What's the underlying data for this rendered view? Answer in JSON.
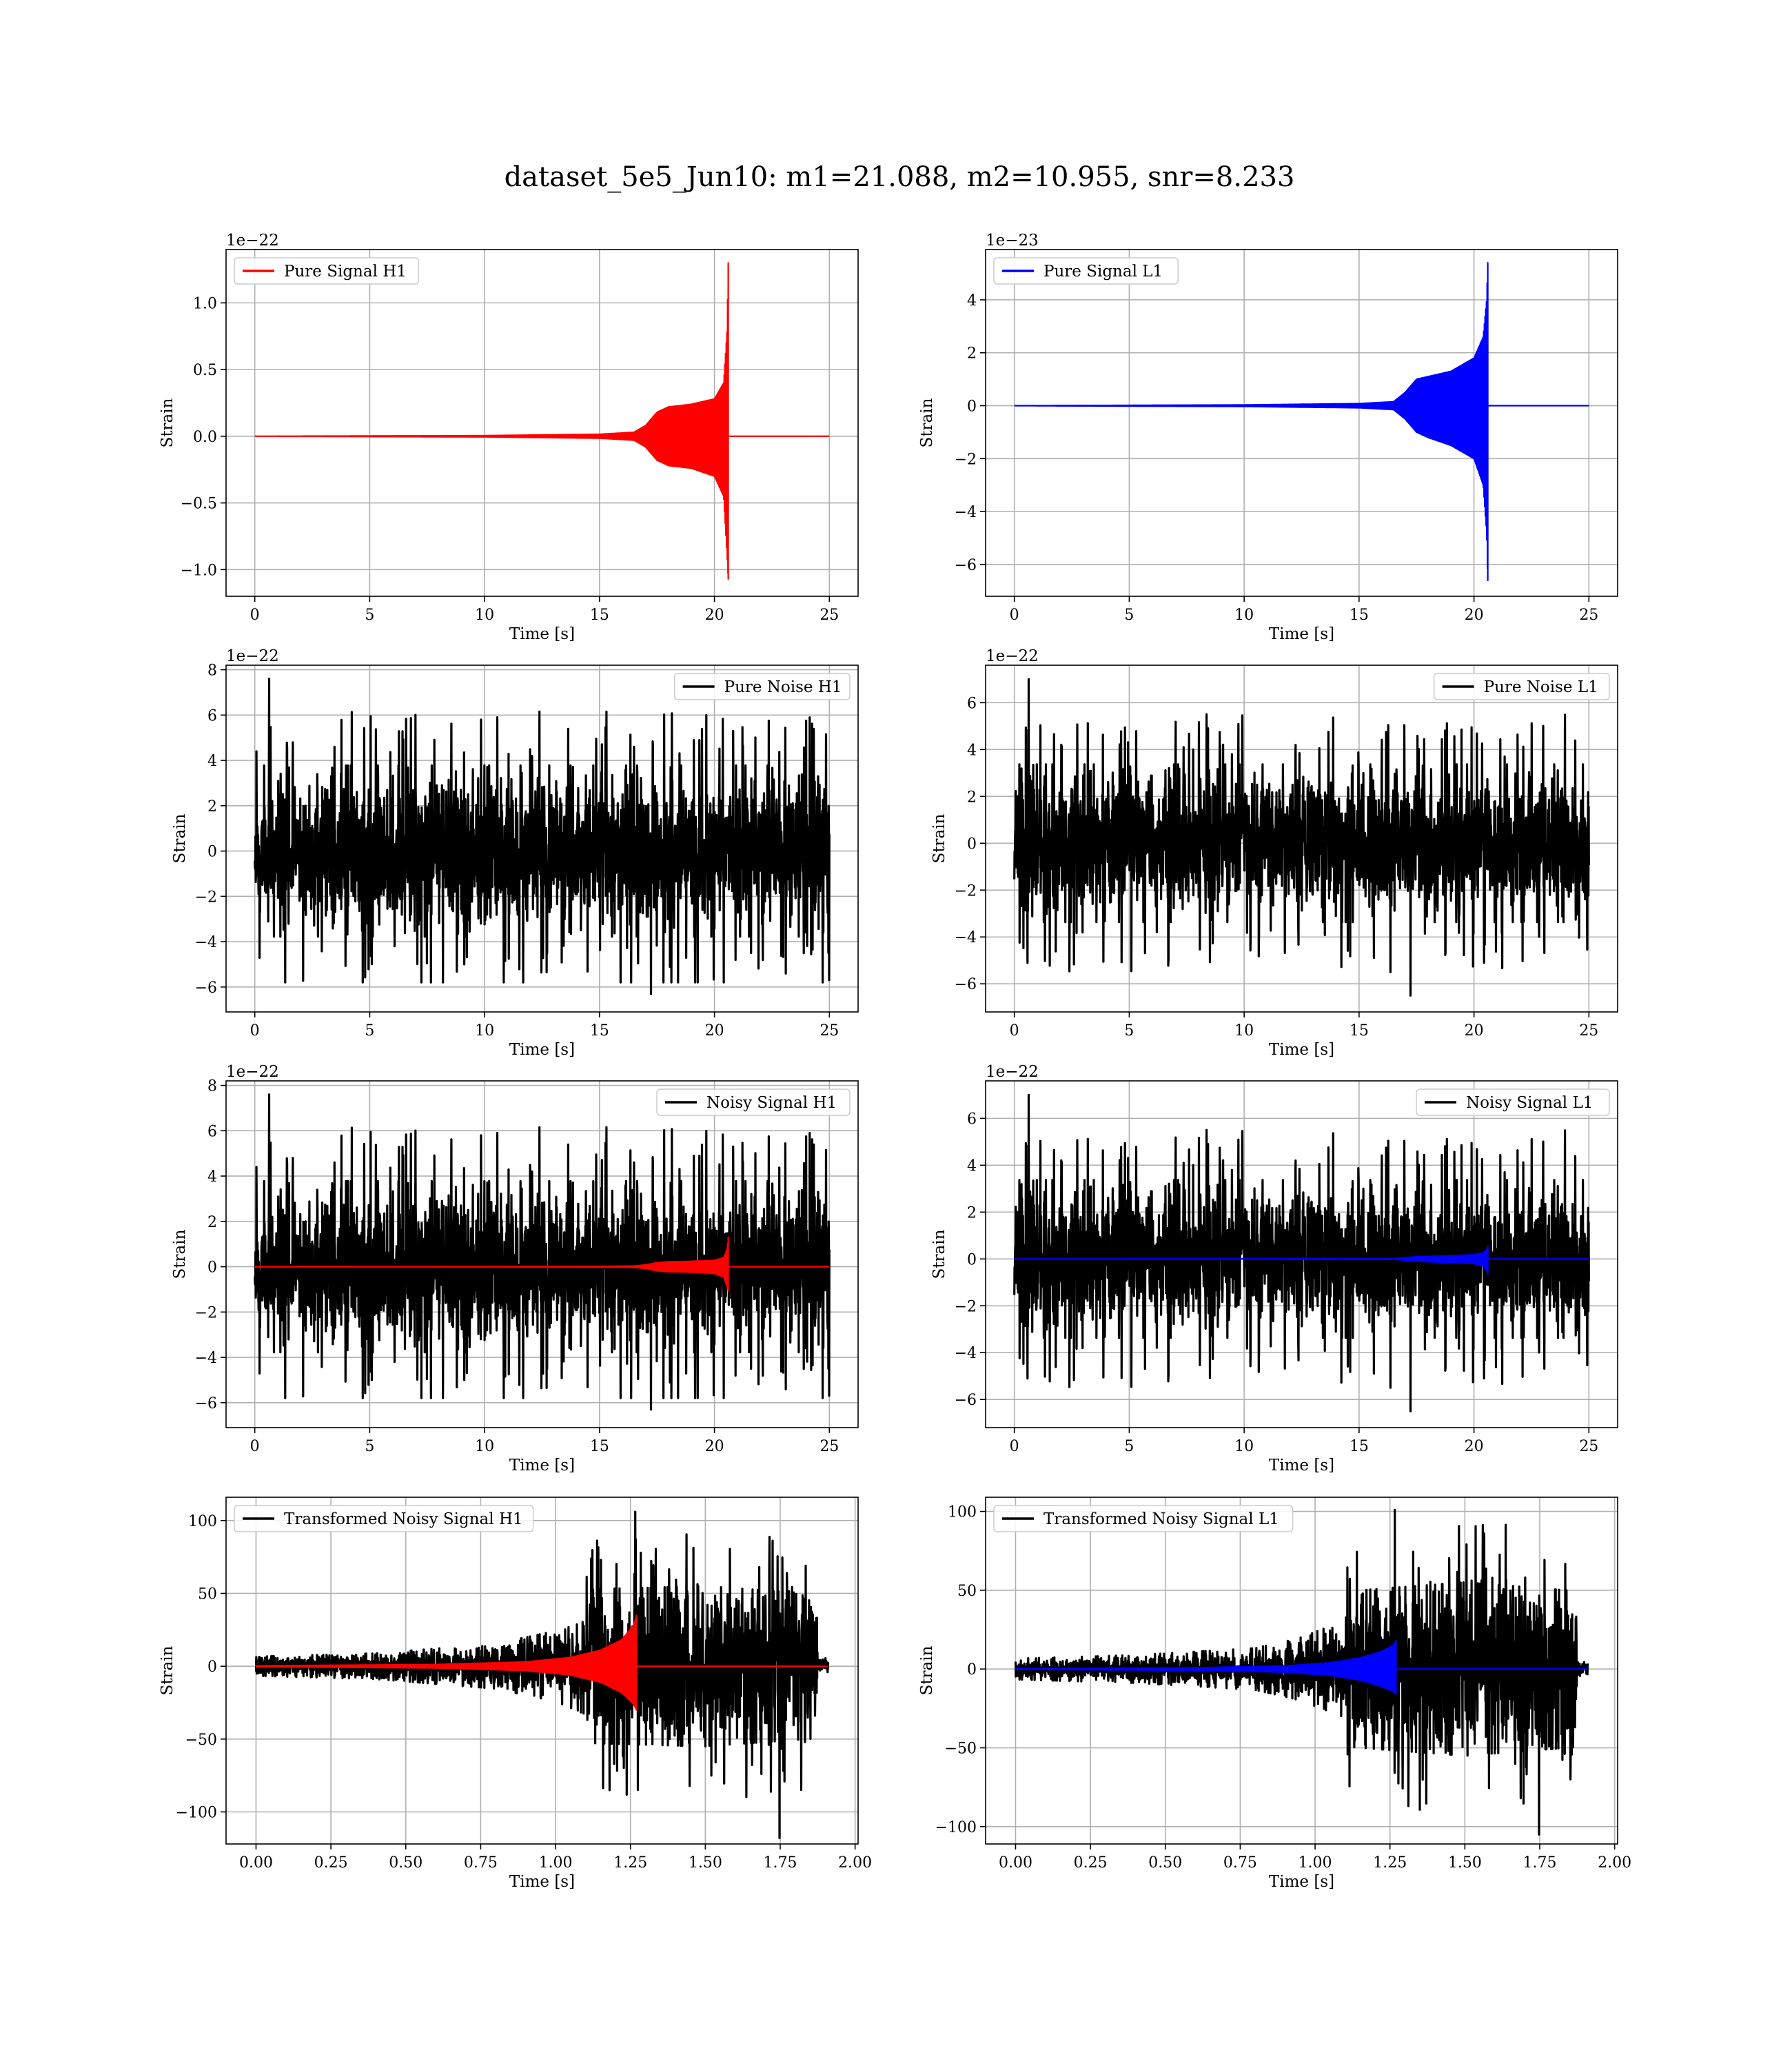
{
  "figure": {
    "title": "dataset_5e5_Jun10: m1=21.088, m2=10.955, snr=8.233"
  },
  "colors": {
    "h1_signal": "#ff0000",
    "l1_signal": "#0000ff",
    "noise": "#000000"
  },
  "chart_data": [
    {
      "type": "line",
      "id": "pure-signal-h1",
      "row": 0,
      "col": 0,
      "title": "",
      "xlabel": "Time [s]",
      "ylabel": "Strain",
      "offset_text": "1e−22",
      "xlim": [
        -1.25,
        26.25
      ],
      "ylim": [
        -1.2,
        1.4
      ],
      "xticks": [
        0,
        5,
        10,
        15,
        20,
        25
      ],
      "xtick_labels": [
        "0",
        "5",
        "10",
        "15",
        "20",
        "25"
      ],
      "yticks": [
        -1.0,
        -0.5,
        0.0,
        0.5,
        1.0
      ],
      "ytick_labels": [
        "−1.0",
        "−0.5",
        "0.0",
        "0.5",
        "1.0"
      ],
      "grid": true,
      "legend_position": "top-left",
      "series": [
        {
          "name": "Pure Signal H1",
          "color": "#ff0000",
          "kind": "chirp",
          "x_start": 0,
          "x_end": 25,
          "merger_time": 20.6,
          "envelope_x": [
            0,
            10,
            15,
            16.5,
            17.0,
            17.5,
            18.0,
            19.0,
            20.0,
            20.4,
            20.55,
            20.6
          ],
          "envelope_upper": [
            0.0,
            0.005,
            0.015,
            0.03,
            0.08,
            0.18,
            0.22,
            0.24,
            0.28,
            0.4,
            0.8,
            1.3
          ],
          "envelope_lower": [
            0.0,
            -0.005,
            -0.015,
            -0.03,
            -0.08,
            -0.18,
            -0.22,
            -0.24,
            -0.3,
            -0.45,
            -0.9,
            -1.07
          ]
        }
      ]
    },
    {
      "type": "line",
      "id": "pure-signal-l1",
      "row": 0,
      "col": 1,
      "title": "",
      "xlabel": "Time [s]",
      "ylabel": "Strain",
      "offset_text": "1e−23",
      "xlim": [
        -1.25,
        26.25
      ],
      "ylim": [
        -7.2,
        5.9
      ],
      "xticks": [
        0,
        5,
        10,
        15,
        20,
        25
      ],
      "xtick_labels": [
        "0",
        "5",
        "10",
        "15",
        "20",
        "25"
      ],
      "yticks": [
        -6,
        -4,
        -2,
        0,
        2,
        4
      ],
      "ytick_labels": [
        "−6",
        "−4",
        "−2",
        "0",
        "2",
        "4"
      ],
      "grid": true,
      "legend_position": "top-left",
      "series": [
        {
          "name": "Pure Signal L1",
          "color": "#0000ff",
          "kind": "chirp",
          "x_start": 0,
          "x_end": 25,
          "merger_time": 20.6,
          "envelope_x": [
            0,
            10,
            15,
            16.5,
            17.0,
            17.5,
            18.0,
            19.0,
            20.0,
            20.4,
            20.55,
            20.6
          ],
          "envelope_upper": [
            0.0,
            0.03,
            0.08,
            0.15,
            0.5,
            1.0,
            1.1,
            1.3,
            1.8,
            2.6,
            4.0,
            5.4
          ],
          "envelope_lower": [
            0.0,
            -0.03,
            -0.08,
            -0.15,
            -0.5,
            -1.0,
            -1.2,
            -1.5,
            -2.0,
            -3.0,
            -4.8,
            -6.6
          ]
        }
      ]
    },
    {
      "type": "line",
      "id": "pure-noise-h1",
      "row": 1,
      "col": 0,
      "title": "",
      "xlabel": "Time [s]",
      "ylabel": "Strain",
      "offset_text": "1e−22",
      "xlim": [
        -1.25,
        26.25
      ],
      "ylim": [
        -7.1,
        8.2
      ],
      "xticks": [
        0,
        5,
        10,
        15,
        20,
        25
      ],
      "xtick_labels": [
        "0",
        "5",
        "10",
        "15",
        "20",
        "25"
      ],
      "yticks": [
        -6,
        -4,
        -2,
        0,
        2,
        4,
        6,
        8
      ],
      "ytick_labels": [
        "−6",
        "−4",
        "−2",
        "0",
        "2",
        "4",
        "6",
        "8"
      ],
      "grid": true,
      "legend_position": "top-right",
      "series": [
        {
          "name": "Pure Noise H1",
          "color": "#000000",
          "kind": "noise",
          "x_start": 0,
          "x_end": 25,
          "core_amplitude": 3.7,
          "peak_max": 7.6,
          "peak_min": -6.3,
          "seed": 11
        }
      ]
    },
    {
      "type": "line",
      "id": "pure-noise-l1",
      "row": 1,
      "col": 1,
      "title": "",
      "xlabel": "Time [s]",
      "ylabel": "Strain",
      "offset_text": "1e−22",
      "xlim": [
        -1.25,
        26.25
      ],
      "ylim": [
        -7.2,
        7.6
      ],
      "xticks": [
        0,
        5,
        10,
        15,
        20,
        25
      ],
      "xtick_labels": [
        "0",
        "5",
        "10",
        "15",
        "20",
        "25"
      ],
      "yticks": [
        -6,
        -4,
        -2,
        0,
        2,
        4,
        6
      ],
      "ytick_labels": [
        "−6",
        "−4",
        "−2",
        "0",
        "2",
        "4",
        "6"
      ],
      "grid": true,
      "legend_position": "top-right",
      "series": [
        {
          "name": "Pure Noise L1",
          "color": "#000000",
          "kind": "noise",
          "x_start": 0,
          "x_end": 25,
          "core_amplitude": 3.3,
          "peak_max": 7.0,
          "peak_min": -6.5,
          "seed": 23
        }
      ]
    },
    {
      "type": "line",
      "id": "noisy-signal-h1",
      "row": 2,
      "col": 0,
      "title": "",
      "xlabel": "Time [s]",
      "ylabel": "Strain",
      "offset_text": "1e−22",
      "xlim": [
        -1.25,
        26.25
      ],
      "ylim": [
        -7.1,
        8.2
      ],
      "xticks": [
        0,
        5,
        10,
        15,
        20,
        25
      ],
      "xtick_labels": [
        "0",
        "5",
        "10",
        "15",
        "20",
        "25"
      ],
      "yticks": [
        -6,
        -4,
        -2,
        0,
        2,
        4,
        6,
        8
      ],
      "ytick_labels": [
        "−6",
        "−4",
        "−2",
        "0",
        "2",
        "4",
        "6",
        "8"
      ],
      "grid": true,
      "legend_position": "top-right",
      "series": [
        {
          "name": "Noisy Signal H1",
          "color": "#000000",
          "kind": "noise",
          "x_start": 0,
          "x_end": 25,
          "core_amplitude": 3.7,
          "peak_max": 7.6,
          "peak_min": -6.3,
          "seed": 11
        },
        {
          "color": "#ff0000",
          "kind": "chirp",
          "x_start": 0,
          "x_end": 25,
          "merger_time": 20.6,
          "envelope_x": [
            0,
            10,
            15,
            16.5,
            17.0,
            17.5,
            18.0,
            19.0,
            20.0,
            20.4,
            20.55,
            20.6
          ],
          "envelope_upper": [
            0.0,
            0.005,
            0.015,
            0.03,
            0.08,
            0.18,
            0.22,
            0.24,
            0.28,
            0.4,
            0.8,
            1.3
          ],
          "envelope_lower": [
            0.0,
            -0.005,
            -0.015,
            -0.03,
            -0.08,
            -0.18,
            -0.22,
            -0.24,
            -0.3,
            -0.45,
            -0.9,
            -1.07
          ]
        }
      ]
    },
    {
      "type": "line",
      "id": "noisy-signal-l1",
      "row": 2,
      "col": 1,
      "title": "",
      "xlabel": "Time [s]",
      "ylabel": "Strain",
      "offset_text": "1e−22",
      "xlim": [
        -1.25,
        26.25
      ],
      "ylim": [
        -7.2,
        7.6
      ],
      "xticks": [
        0,
        5,
        10,
        15,
        20,
        25
      ],
      "xtick_labels": [
        "0",
        "5",
        "10",
        "15",
        "20",
        "25"
      ],
      "yticks": [
        -6,
        -4,
        -2,
        0,
        2,
        4,
        6
      ],
      "ytick_labels": [
        "−6",
        "−4",
        "−2",
        "0",
        "2",
        "4",
        "6"
      ],
      "grid": true,
      "legend_position": "top-right",
      "series": [
        {
          "name": "Noisy Signal L1",
          "color": "#000000",
          "kind": "noise",
          "x_start": 0,
          "x_end": 25,
          "core_amplitude": 3.3,
          "peak_max": 7.0,
          "peak_min": -6.5,
          "seed": 23
        },
        {
          "color": "#0000ff",
          "kind": "chirp",
          "x_start": 0,
          "x_end": 25,
          "merger_time": 20.6,
          "envelope_x": [
            0,
            10,
            15,
            16.5,
            17.0,
            17.5,
            18.0,
            19.0,
            20.0,
            20.4,
            20.55,
            20.6
          ],
          "envelope_upper": [
            0.0,
            0.003,
            0.008,
            0.015,
            0.05,
            0.1,
            0.11,
            0.13,
            0.18,
            0.26,
            0.4,
            0.54
          ],
          "envelope_lower": [
            0.0,
            -0.003,
            -0.008,
            -0.015,
            -0.05,
            -0.1,
            -0.12,
            -0.15,
            -0.2,
            -0.3,
            -0.48,
            -0.66
          ]
        }
      ]
    },
    {
      "type": "line",
      "id": "transformed-noisy-signal-h1",
      "row": 3,
      "col": 0,
      "title": "",
      "xlabel": "Time [s]",
      "ylabel": "Strain",
      "offset_text": "",
      "xlim": [
        -0.1,
        2.01
      ],
      "ylim": [
        -122,
        116
      ],
      "xticks": [
        0.0,
        0.25,
        0.5,
        0.75,
        1.0,
        1.25,
        1.5,
        1.75,
        2.0
      ],
      "xtick_labels": [
        "0.00",
        "0.25",
        "0.50",
        "0.75",
        "1.00",
        "1.25",
        "1.50",
        "1.75",
        "2.00"
      ],
      "yticks": [
        -100,
        -50,
        0,
        50,
        100
      ],
      "ytick_labels": [
        "−100",
        "−50",
        "0",
        "50",
        "100"
      ],
      "grid": true,
      "legend_position": "top-left",
      "series": [
        {
          "name": "Transformed Noisy Signal H1",
          "color": "#000000",
          "kind": "burst",
          "x_start": 0,
          "x_end": 1.91,
          "cut_time": 1.875,
          "envelope_x": [
            0.0,
            0.4,
            0.8,
            1.0,
            1.1,
            1.12,
            1.5,
            1.87,
            1.875,
            1.91
          ],
          "envelope_amp": [
            6,
            8,
            14,
            22,
            30,
            48,
            50,
            45,
            5,
            5
          ],
          "peak_max": 106,
          "peak_min": -118,
          "seed": 37
        },
        {
          "color": "#ff0000",
          "kind": "chirp",
          "x_start": 0,
          "x_end": 1.91,
          "merger_time": 1.27,
          "envelope_x": [
            0.0,
            0.6,
            0.9,
            1.05,
            1.15,
            1.22,
            1.26,
            1.27
          ],
          "envelope_upper": [
            0.3,
            1.2,
            3,
            6,
            11,
            18,
            28,
            35
          ],
          "envelope_lower": [
            -0.3,
            -1.2,
            -3,
            -6,
            -11,
            -18,
            -26,
            -30
          ]
        }
      ]
    },
    {
      "type": "line",
      "id": "transformed-noisy-signal-l1",
      "row": 3,
      "col": 1,
      "title": "",
      "xlabel": "Time [s]",
      "ylabel": "Strain",
      "offset_text": "",
      "xlim": [
        -0.1,
        2.01
      ],
      "ylim": [
        -111,
        109
      ],
      "xticks": [
        0.0,
        0.25,
        0.5,
        0.75,
        1.0,
        1.25,
        1.5,
        1.75,
        2.0
      ],
      "xtick_labels": [
        "0.00",
        "0.25",
        "0.50",
        "0.75",
        "1.00",
        "1.25",
        "1.50",
        "1.75",
        "2.00"
      ],
      "yticks": [
        -100,
        -50,
        0,
        50,
        100
      ],
      "ytick_labels": [
        "−100",
        "−50",
        "0",
        "50",
        "100"
      ],
      "grid": true,
      "legend_position": "top-left",
      "series": [
        {
          "name": "Transformed Noisy Signal L1",
          "color": "#000000",
          "kind": "burst",
          "x_start": 0,
          "x_end": 1.91,
          "cut_time": 1.875,
          "envelope_x": [
            0.0,
            0.4,
            0.8,
            0.95,
            1.1,
            1.12,
            1.5,
            1.87,
            1.875,
            1.91
          ],
          "envelope_amp": [
            6,
            8,
            12,
            18,
            28,
            45,
            50,
            45,
            4,
            4
          ],
          "peak_max": 101,
          "peak_min": -105,
          "seed": 53
        },
        {
          "color": "#0000ff",
          "kind": "chirp",
          "x_start": 0,
          "x_end": 1.91,
          "merger_time": 1.27,
          "envelope_x": [
            0.0,
            0.6,
            0.9,
            1.05,
            1.15,
            1.22,
            1.26,
            1.27
          ],
          "envelope_upper": [
            0.2,
            0.8,
            2,
            4,
            7,
            11,
            15,
            18
          ],
          "envelope_lower": [
            -0.2,
            -0.8,
            -2,
            -4,
            -7,
            -11,
            -14,
            -16
          ]
        }
      ]
    }
  ]
}
